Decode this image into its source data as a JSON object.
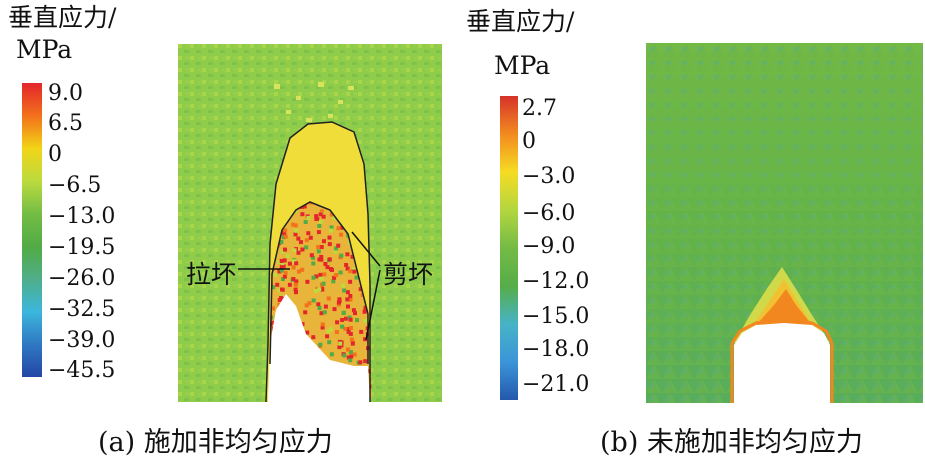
{
  "panel_a": {
    "colorbar": {
      "title_line1": "垂直应力/",
      "title_line2": "MPa",
      "ticks": [
        "9.0",
        "6.5",
        "0",
        "−6.5",
        "−13.0",
        "−19.5",
        "−26.0",
        "−32.5",
        "−39.0",
        "−45.5"
      ],
      "colors": [
        "#e3262c",
        "#f3701c",
        "#f2d417",
        "#bcdb3e",
        "#74bd45",
        "#52ab45",
        "#4fae8a",
        "#3cb6dc",
        "#2f78c2",
        "#2346a6"
      ]
    },
    "annotations": {
      "tensile_failure": "拉坏",
      "shear_failure": "剪坏"
    },
    "caption": "(a) 施加非均匀应力"
  },
  "panel_b": {
    "colorbar": {
      "title_line1": "垂直应力/",
      "title_line2": "MPa",
      "ticks": [
        "2.7",
        "0",
        "−3.0",
        "−6.0",
        "−9.0",
        "−12.0",
        "−15.0",
        "−18.0",
        "−21.0"
      ],
      "colors": [
        "#d6332a",
        "#f28a1f",
        "#f5dc22",
        "#b3d63f",
        "#74bb45",
        "#56ad48",
        "#47b3c7",
        "#3b95d8",
        "#2458ac"
      ]
    },
    "caption": "(b) 未施加非均匀应力"
  }
}
